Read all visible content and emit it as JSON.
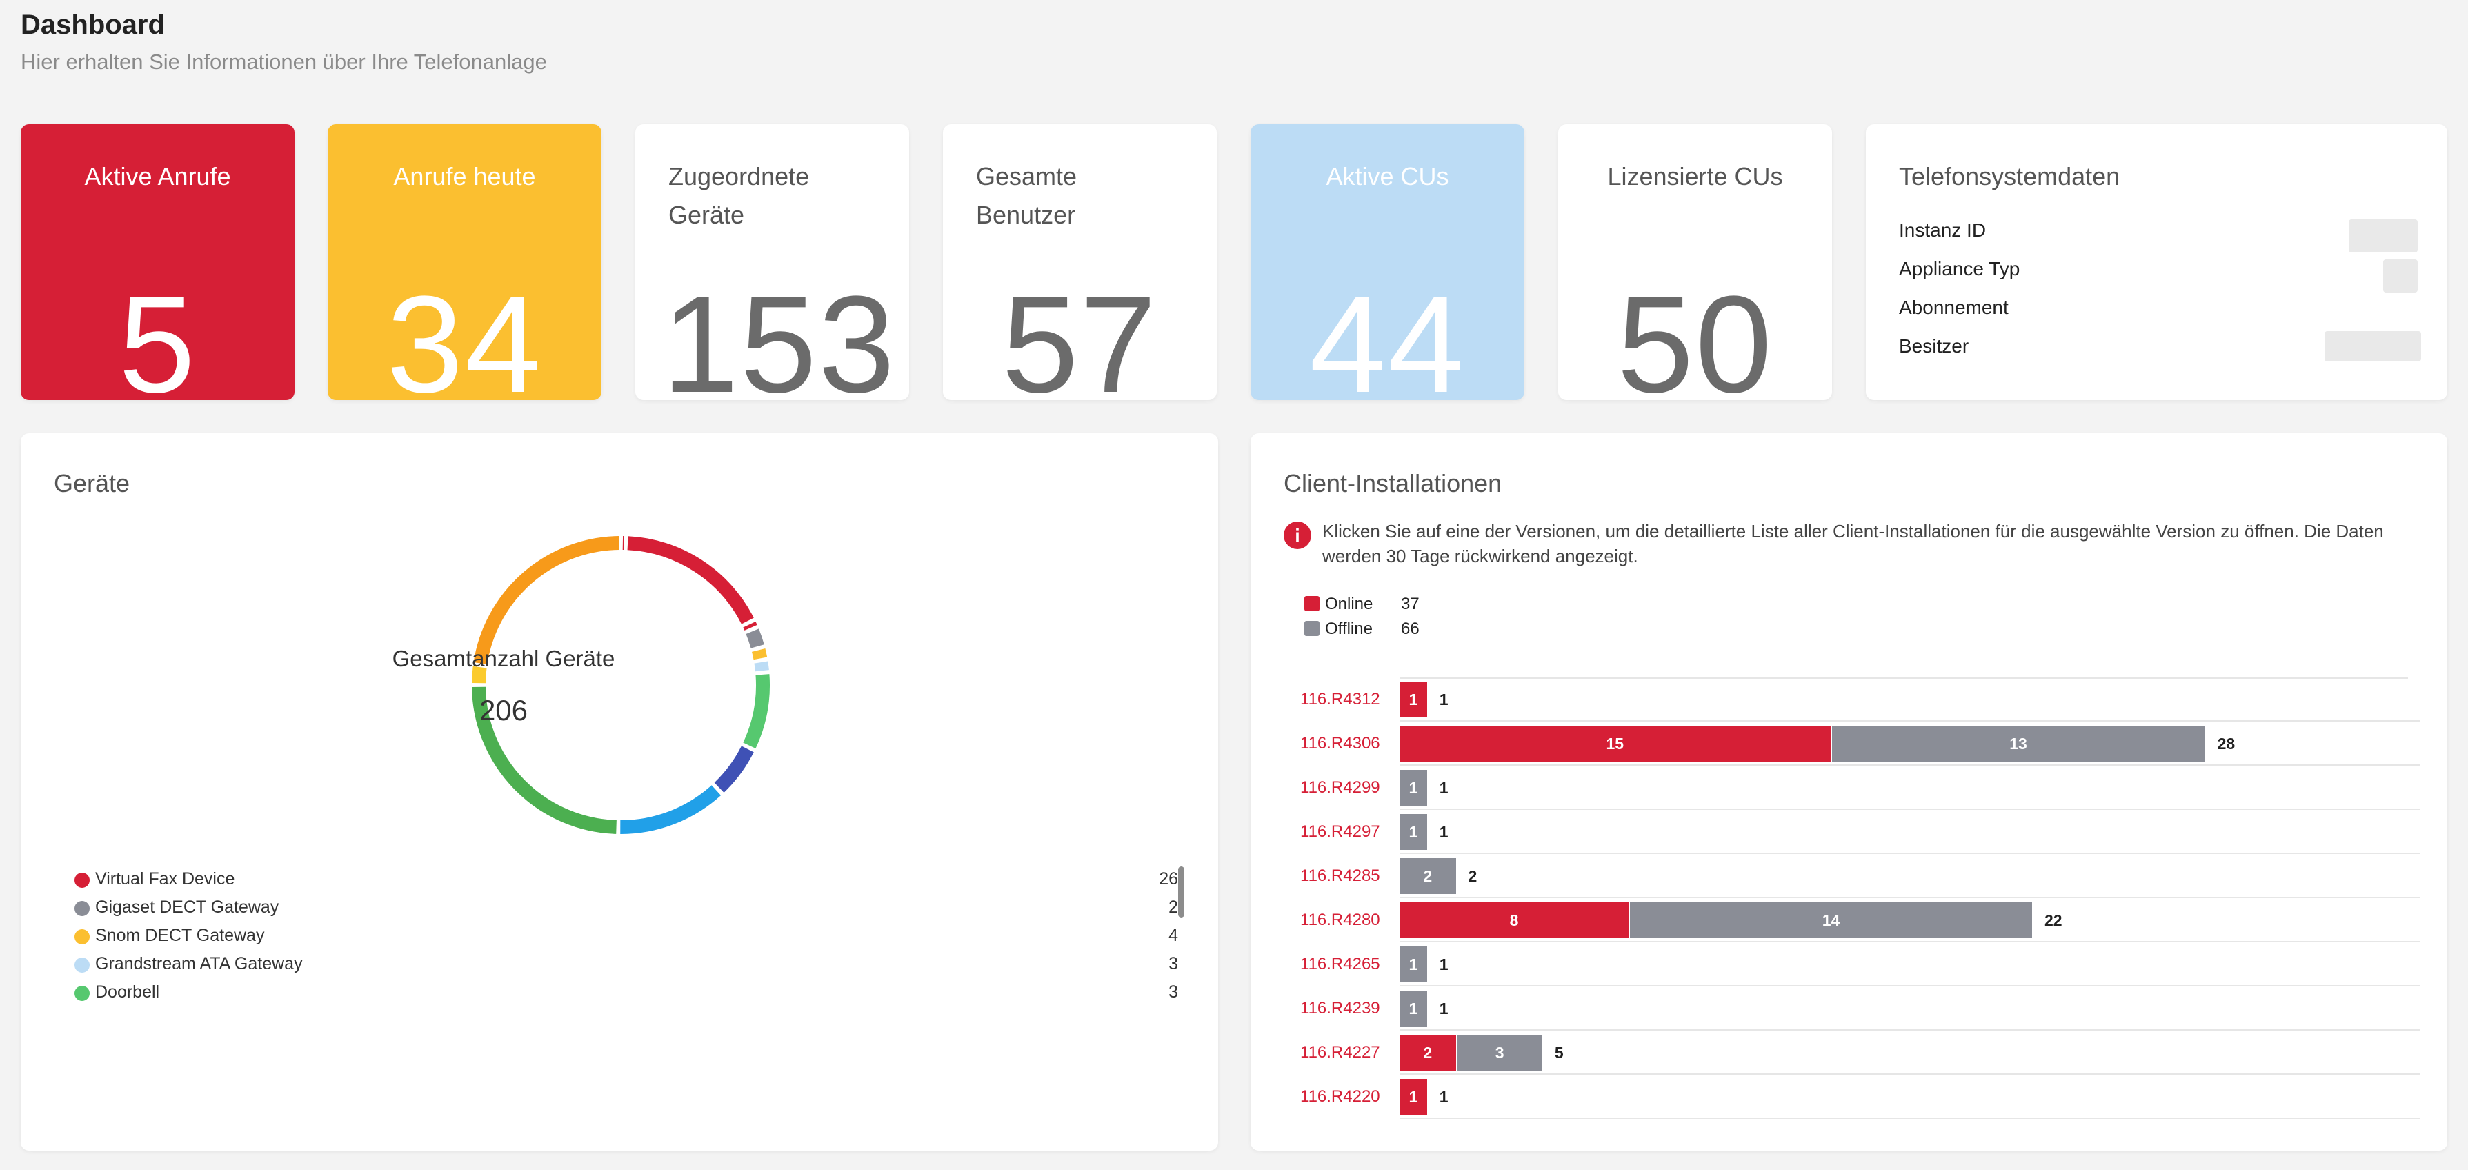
{
  "header": {
    "title": "Dashboard",
    "subtitle": "Hier erhalten Sie Informationen über Ihre Telefonanlage"
  },
  "cards": [
    {
      "title": "Aktive Anrufe",
      "value": "5"
    },
    {
      "title": "Anrufe heute",
      "value": "34"
    },
    {
      "title": "Zugeordnete\nGeräte",
      "value": "153"
    },
    {
      "title": "Gesamte\nBenutzer",
      "value": "57"
    },
    {
      "title": "Aktive CUs",
      "value": "44"
    },
    {
      "title": "Lizensierte CUs",
      "value": "50"
    }
  ],
  "system_data": {
    "title": "Telefonsystemdaten",
    "rows": [
      "Instanz ID",
      "Appliance Typ",
      "Abonnement",
      "Besitzer"
    ]
  },
  "devices": {
    "title": "Geräte",
    "center_label": "Gesamtanzahl Geräte",
    "center_value": "206",
    "legend": [
      {
        "label": "Virtual Fax Device",
        "count": "26",
        "color": "#d61f36"
      },
      {
        "label": "Gigaset DECT Gateway",
        "count": "2",
        "color": "#8a8d96"
      },
      {
        "label": "Snom DECT Gateway",
        "count": "4",
        "color": "#fbbf30"
      },
      {
        "label": "Grandstream ATA Gateway",
        "count": "3",
        "color": "#bcdcf5"
      },
      {
        "label": "Doorbell",
        "count": "3",
        "color": "#56c86f"
      }
    ],
    "segment_colors": [
      "#d61f36",
      "#d61f36",
      "#8a8d96",
      "#fbbf30",
      "#bcdcf5",
      "#56c86f",
      "#3f51b5",
      "#21a0e8",
      "#4caf50",
      "#fbcb2d",
      "#f79a1a",
      "#d61f36"
    ]
  },
  "clients": {
    "title": "Client-Installationen",
    "info": "Klicken Sie auf eine der Versionen, um die detaillierte Liste aller Client-Installationen für die ausgewählte Version zu öffnen. Die Daten werden 30 Tage rückwirkend angezeigt.",
    "summary": [
      {
        "label": "Online",
        "value": "37",
        "color": "#d61f36"
      },
      {
        "label": "Offline",
        "value": "66",
        "color": "#8a8d96"
      }
    ]
  },
  "chart_data": {
    "type": "bar",
    "orientation": "horizontal",
    "stacked": true,
    "categories": [
      "116.R4312",
      "116.R4306",
      "116.R4299",
      "116.R4297",
      "116.R4285",
      "116.R4280",
      "116.R4265",
      "116.R4239",
      "116.R4227",
      "116.R4220"
    ],
    "series": [
      {
        "name": "Online",
        "color": "#d61f36",
        "values": [
          1,
          15,
          0,
          0,
          0,
          8,
          0,
          0,
          2,
          1
        ]
      },
      {
        "name": "Offline",
        "color": "#8a8d96",
        "values": [
          0,
          13,
          1,
          1,
          2,
          14,
          1,
          1,
          3,
          0
        ]
      }
    ],
    "totals": [
      "1",
      "28",
      "1",
      "1",
      "2",
      "22",
      "1",
      "1",
      "5",
      "1"
    ],
    "xlim": [
      0,
      35
    ]
  }
}
